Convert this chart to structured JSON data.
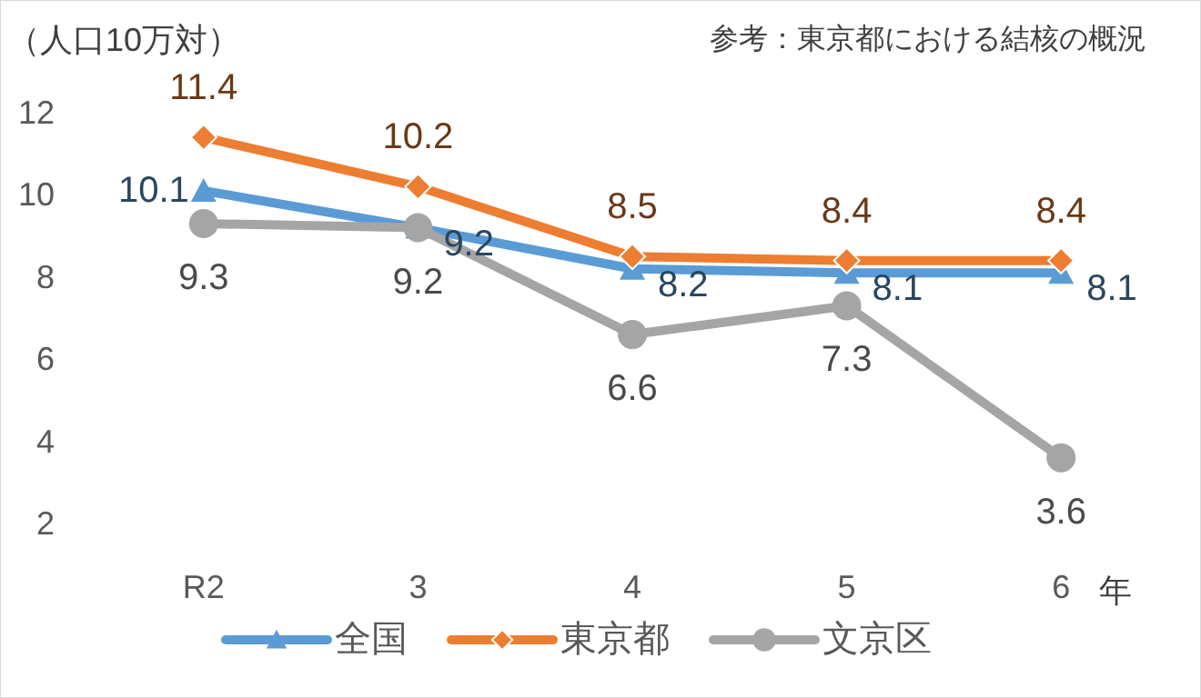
{
  "chart_data": {
    "type": "line",
    "title": "参考：東京都における結核の概況",
    "ylabel": "（人口10万対）",
    "xlabel": "年",
    "categories": [
      "R2",
      "3",
      "4",
      "5",
      "6"
    ],
    "ylim": [
      2,
      12
    ],
    "yticks": [
      2,
      4,
      6,
      8,
      10,
      12
    ],
    "grid": false,
    "legend": "bottom",
    "data_labels": true,
    "series": [
      {
        "name": "全国",
        "color": "#5b9bd5",
        "marker": "triangle",
        "values": [
          10.1,
          9.2,
          8.2,
          8.1,
          8.1
        ]
      },
      {
        "name": "東京都",
        "color": "#ed7d31",
        "marker": "diamond",
        "values": [
          11.4,
          10.2,
          8.5,
          8.4,
          8.4
        ]
      },
      {
        "name": "文京区",
        "color": "#a5a5a5",
        "marker": "circle",
        "values": [
          9.3,
          9.2,
          6.6,
          7.3,
          3.6
        ]
      }
    ]
  }
}
